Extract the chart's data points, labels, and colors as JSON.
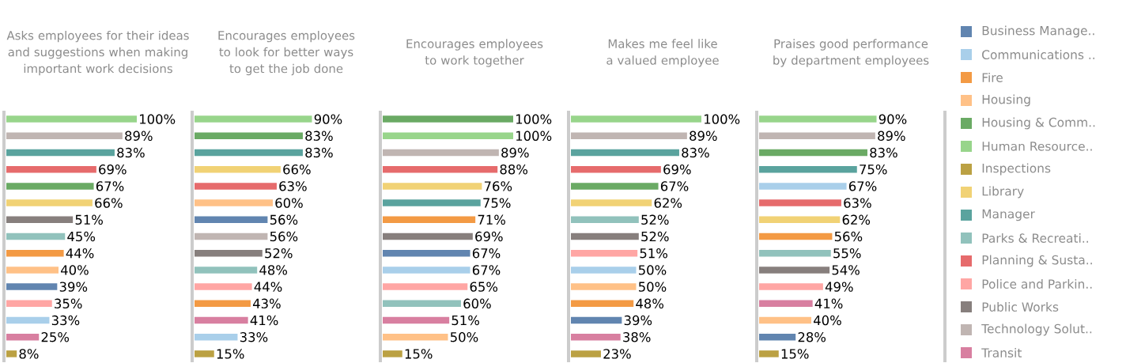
{
  "chart_data": [
    {
      "type": "bar",
      "orientation": "horizontal",
      "title": "Asks employees for their ideas and suggestions when making important work decisions",
      "categories": [
        null,
        null,
        null,
        null,
        null,
        null,
        null,
        null,
        null,
        null,
        null,
        null,
        null,
        null,
        null
      ],
      "values": [
        100,
        89,
        83,
        69,
        67,
        66,
        51,
        45,
        44,
        40,
        39,
        35,
        33,
        25,
        8
      ],
      "value_labels": [
        "100%",
        "89%",
        "83%",
        "69%",
        "67%",
        "66%",
        "51%",
        "45%",
        "44%",
        "40%",
        "39%",
        "35%",
        "33%",
        "25%",
        "8%"
      ],
      "colors": [
        "#98d58b",
        "#c0b5b2",
        "#5aa39e",
        "#e66b6c",
        "#6aaa64",
        "#f1d275",
        "#877f7d",
        "#91c2bc",
        "#f39a44",
        "#ffc187",
        "#6185b0",
        "#ffa6a4",
        "#a9cfea",
        "#d87fa0",
        "#bba143"
      ]
    },
    {
      "type": "bar",
      "orientation": "horizontal",
      "title": "Encourages employees to look for better ways to get the job done",
      "categories": [
        null,
        null,
        null,
        null,
        null,
        null,
        null,
        null,
        null,
        null,
        null,
        null,
        null,
        null,
        null
      ],
      "values": [
        90,
        83,
        83,
        66,
        63,
        60,
        56,
        56,
        52,
        48,
        44,
        43,
        41,
        33,
        15
      ],
      "value_labels": [
        "90%",
        "83%",
        "83%",
        "66%",
        "63%",
        "60%",
        "56%",
        "56%",
        "52%",
        "48%",
        "44%",
        "43%",
        "41%",
        "33%",
        "15%"
      ],
      "colors": [
        "#98d58b",
        "#6aaa64",
        "#5aa39e",
        "#f1d275",
        "#e66b6c",
        "#ffc187",
        "#6185b0",
        "#c0b5b2",
        "#877f7d",
        "#91c2bc",
        "#ffa6a4",
        "#f39a44",
        "#d87fa0",
        "#a9cfea",
        "#bba143"
      ]
    },
    {
      "type": "bar",
      "orientation": "horizontal",
      "title": "Encourages employees to work together",
      "categories": [
        null,
        null,
        null,
        null,
        null,
        null,
        null,
        null,
        null,
        null,
        null,
        null,
        null,
        null,
        null
      ],
      "values": [
        100,
        100,
        89,
        88,
        76,
        75,
        71,
        69,
        67,
        67,
        65,
        60,
        51,
        50,
        15
      ],
      "value_labels": [
        "100%",
        "100%",
        "89%",
        "88%",
        "76%",
        "75%",
        "71%",
        "69%",
        "67%",
        "67%",
        "65%",
        "60%",
        "51%",
        "50%",
        "15%"
      ],
      "colors": [
        "#6aaa64",
        "#98d58b",
        "#c0b5b2",
        "#e66b6c",
        "#f1d275",
        "#5aa39e",
        "#f39a44",
        "#877f7d",
        "#6185b0",
        "#a9cfea",
        "#ffa6a4",
        "#91c2bc",
        "#d87fa0",
        "#ffc187",
        "#bba143"
      ]
    },
    {
      "type": "bar",
      "orientation": "horizontal",
      "title": "Makes me feel like a valued employee",
      "categories": [
        null,
        null,
        null,
        null,
        null,
        null,
        null,
        null,
        null,
        null,
        null,
        null,
        null,
        null,
        null
      ],
      "values": [
        100,
        89,
        83,
        69,
        67,
        62,
        52,
        52,
        51,
        50,
        50,
        48,
        39,
        38,
        23
      ],
      "value_labels": [
        "100%",
        "89%",
        "83%",
        "69%",
        "67%",
        "62%",
        "52%",
        "52%",
        "51%",
        "50%",
        "50%",
        "48%",
        "39%",
        "38%",
        "23%"
      ],
      "colors": [
        "#98d58b",
        "#c0b5b2",
        "#5aa39e",
        "#e66b6c",
        "#6aaa64",
        "#f1d275",
        "#91c2bc",
        "#877f7d",
        "#ffa6a4",
        "#a9cfea",
        "#ffc187",
        "#f39a44",
        "#6185b0",
        "#d87fa0",
        "#bba143"
      ]
    },
    {
      "type": "bar",
      "orientation": "horizontal",
      "title": "Praises good performance by department employees",
      "categories": [
        null,
        null,
        null,
        null,
        null,
        null,
        null,
        null,
        null,
        null,
        null,
        null,
        null,
        null,
        null
      ],
      "values": [
        90,
        89,
        83,
        75,
        67,
        63,
        62,
        56,
        55,
        54,
        49,
        41,
        40,
        28,
        15
      ],
      "value_labels": [
        "90%",
        "89%",
        "83%",
        "75%",
        "67%",
        "63%",
        "62%",
        "56%",
        "55%",
        "54%",
        "49%",
        "41%",
        "40%",
        "28%",
        "15%"
      ],
      "colors": [
        "#98d58b",
        "#c0b5b2",
        "#6aaa64",
        "#5aa39e",
        "#a9cfea",
        "#e66b6c",
        "#f1d275",
        "#f39a44",
        "#91c2bc",
        "#877f7d",
        "#ffa6a4",
        "#d87fa0",
        "#ffc187",
        "#6185b0",
        "#bba143"
      ]
    },
    {
      "type": "other",
      "annotations": [
        "Business Manage..",
        "Communications ..",
        "Fire",
        "Housing",
        "Housing & Comm..",
        "Human Resource..",
        "Inspections",
        "Library",
        "Manager",
        "Parks & Recreati..",
        "Planning & Susta..",
        "Police and Parkin..",
        "Public Works",
        "Technology Solut..",
        "Transit"
      ],
      "colors": [
        "#6185b0",
        "#a9cfea",
        "#f39a44",
        "#ffc187",
        "#6aaa64",
        "#98d58b",
        "#bba143",
        "#f1d275",
        "#5aa39e",
        "#91c2bc",
        "#e66b6c",
        "#ffa6a4",
        "#877f7d",
        "#c0b5b2",
        "#d87fa0"
      ]
    }
  ]
}
